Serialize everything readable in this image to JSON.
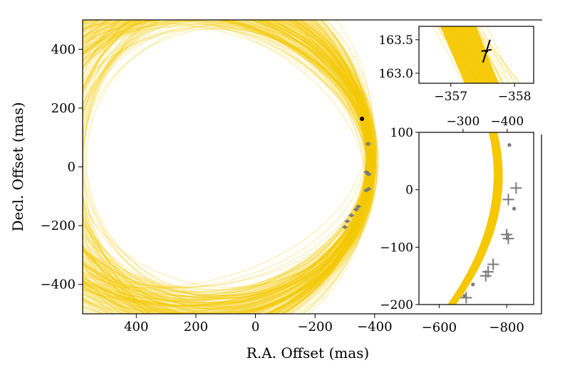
{
  "colors": {
    "orbit": "#f5c800",
    "obs": "#7a7a7a",
    "highlight": "#000000"
  },
  "chart_data": [
    {
      "id": "main",
      "type": "line",
      "xlabel": "R.A. Offset (mas)",
      "ylabel": "Decl. Offset (mas)",
      "xlim": [
        580,
        -960
      ],
      "ylim": [
        -500,
        500
      ],
      "xticks": [
        {
          "v": 400,
          "t": "400"
        },
        {
          "v": 200,
          "t": "200"
        },
        {
          "v": 0,
          "t": "0"
        },
        {
          "v": -200,
          "t": "−200"
        },
        {
          "v": -400,
          "t": "−400"
        }
      ],
      "yticks": [
        {
          "v": 400,
          "t": "400"
        },
        {
          "v": 200,
          "t": "200"
        },
        {
          "v": 0,
          "t": "0"
        },
        {
          "v": -200,
          "t": "−200"
        },
        {
          "v": -400,
          "t": "−400"
        }
      ],
      "orbit_tracks": "many semi-transparent predicted orbit tracks, crescent opening to the left",
      "highlight_point": {
        "x": -357.5,
        "y": 163.3
      },
      "points": [
        {
          "x": -378,
          "y": 78
        },
        {
          "x": -372,
          "y": -18
        },
        {
          "x": -380,
          "y": -25
        },
        {
          "x": -380,
          "y": -75
        },
        {
          "x": -372,
          "y": -80
        },
        {
          "x": -345,
          "y": -135
        },
        {
          "x": -338,
          "y": -145
        },
        {
          "x": -322,
          "y": -165
        },
        {
          "x": -308,
          "y": -185
        },
        {
          "x": -300,
          "y": -205
        }
      ]
    },
    {
      "id": "inset_zoom",
      "type": "line",
      "xlim": [
        -356.5,
        -358.3
      ],
      "ylim": [
        162.85,
        163.7
      ],
      "xticks": [
        {
          "v": -357,
          "t": "−357"
        },
        {
          "v": -358,
          "t": "−358"
        }
      ],
      "yticks": [
        {
          "v": 163.5,
          "t": "163.5"
        },
        {
          "v": 163.0,
          "t": "163.0"
        }
      ],
      "highlight_point": {
        "x": -357.56,
        "y": 163.33
      }
    },
    {
      "id": "inset_arc",
      "type": "scatter",
      "xlim": [
        -540,
        -880
      ],
      "ylim": [
        -200,
        100
      ],
      "xticks": [
        {
          "v": -600,
          "t": "−600"
        },
        {
          "v": -800,
          "t": "−800"
        }
      ],
      "yticks": [
        {
          "v": 100,
          "t": "100"
        },
        {
          "v": 0,
          "t": "0"
        },
        {
          "v": -100,
          "t": "−100"
        },
        {
          "v": -200,
          "t": "−200"
        }
      ],
      "top_xticks": [
        {
          "v": -300,
          "t": "−300"
        },
        {
          "v": -400,
          "t": "−400"
        }
      ],
      "top_xlim": [
        -200,
        -460
      ],
      "points": [
        {
          "x": -808,
          "y": 78
        },
        {
          "x": -822,
          "y": -33
        },
        {
          "x": -675,
          "y": -185
        },
        {
          "x": -700,
          "y": -165
        }
      ],
      "crosses": [
        {
          "x": -828,
          "y": 3
        },
        {
          "x": -805,
          "y": -17
        },
        {
          "x": -800,
          "y": -78
        },
        {
          "x": -805,
          "y": -85
        },
        {
          "x": -760,
          "y": -130
        },
        {
          "x": -745,
          "y": -143
        },
        {
          "x": -738,
          "y": -150
        },
        {
          "x": -680,
          "y": -188
        }
      ]
    }
  ]
}
